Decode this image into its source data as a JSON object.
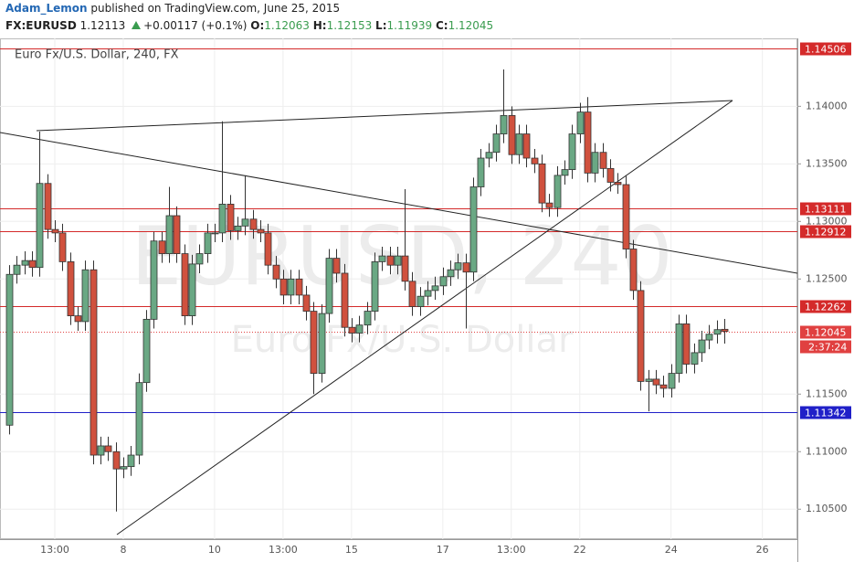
{
  "header": {
    "author": "Adam_Lemon",
    "byline": "published on TradingView.com, June 25, 2015",
    "symbol": "FX:EURUSD",
    "last": "1.12113",
    "change": "+0.00117 (+0.1%)",
    "ohlc": [
      {
        "label": "O:",
        "value": "1.12063"
      },
      {
        "label": "H:",
        "value": "1.12153"
      },
      {
        "label": "L:",
        "value": "1.11939"
      },
      {
        "label": "C:",
        "value": "1.12045"
      }
    ]
  },
  "chart_data": {
    "type": "candlestick",
    "title": "Euro Fx/U.S. Dollar, 240, FX",
    "watermark": "EURUSD, 240",
    "watermark_sub": "Euro Fx/U.S. Dollar",
    "categories": [
      null,
      null,
      null,
      null,
      null,
      null,
      "13:00",
      null,
      null,
      null,
      null,
      null,
      null,
      null,
      null,
      "8",
      null,
      null,
      null,
      null,
      null,
      null,
      null,
      null,
      null,
      null,
      null,
      "10",
      null,
      null,
      null,
      null,
      null,
      null,
      null,
      null,
      "13:00",
      null,
      null,
      null,
      null,
      null,
      null,
      null,
      null,
      "15",
      null,
      null,
      null,
      null,
      null,
      null,
      null,
      null,
      null,
      null,
      null,
      "17",
      null,
      null,
      null,
      null,
      null,
      null,
      null,
      null,
      "13:00",
      null,
      null,
      null,
      null,
      null,
      null,
      null,
      null,
      "22",
      null,
      null,
      null,
      null,
      null,
      null,
      null,
      null,
      null,
      null,
      null,
      "24",
      null,
      null,
      null,
      null,
      null,
      null,
      null,
      null,
      null,
      null,
      null,
      "26",
      null,
      null,
      null,
      null
    ],
    "open": [
      1.1123,
      1.1254,
      1.1262,
      1.1266,
      1.126,
      1.1333,
      1.1293,
      1.129,
      1.1265,
      1.1218,
      1.1213,
      1.1258,
      1.1097,
      1.1105,
      1.11,
      1.1085,
      1.1087,
      1.1097,
      1.116,
      1.1215,
      1.1283,
      1.1272,
      1.1305,
      1.1272,
      1.1218,
      1.1263,
      1.1272,
      1.129,
      1.129,
      1.1315,
      1.1292,
      1.1296,
      1.1302,
      1.1293,
      1.129,
      1.1262,
      1.125,
      1.1236,
      1.125,
      1.1236,
      1.1222,
      1.1168,
      1.122,
      1.1268,
      1.1255,
      1.1208,
      1.1203,
      1.121,
      1.1222,
      1.1265,
      1.127,
      1.1262,
      1.127,
      1.1248,
      1.1226,
      1.1235,
      1.124,
      1.1244,
      1.1252,
      1.1258,
      1.1264,
      1.1256,
      1.133,
      1.1355,
      1.136,
      1.1376,
      1.1392,
      1.1358,
      1.1376,
      1.1355,
      1.135,
      1.1316,
      1.1312,
      1.134,
      1.1345,
      1.1376,
      1.1395,
      1.1342,
      1.136,
      1.1346,
      1.1334,
      1.1332,
      1.1276,
      1.124,
      1.1161,
      1.1163,
      1.1158,
      1.1155,
      1.1168,
      1.1211,
      1.1176,
      1.1186,
      1.1197,
      1.1202,
      1.12063,
      null,
      null,
      null,
      null,
      null,
      null,
      null,
      null,
      null
    ],
    "high": [
      1.1262,
      1.127,
      1.1274,
      1.1274,
      1.1378,
      1.1341,
      1.1301,
      1.1298,
      1.1273,
      1.1226,
      1.1266,
      1.1266,
      1.1113,
      1.1113,
      1.1108,
      1.1095,
      1.1105,
      1.1168,
      1.1223,
      1.1291,
      1.1291,
      1.133,
      1.1313,
      1.128,
      1.1271,
      1.128,
      1.1298,
      1.1298,
      1.1387,
      1.1323,
      1.1304,
      1.134,
      1.131,
      1.1301,
      1.1298,
      1.127,
      1.1258,
      1.1258,
      1.1258,
      1.1244,
      1.123,
      1.1228,
      1.1276,
      1.1276,
      1.1263,
      1.1216,
      1.1218,
      1.123,
      1.1273,
      1.1278,
      1.1278,
      1.1278,
      1.1328,
      1.1256,
      1.1243,
      1.1248,
      1.1252,
      1.126,
      1.1266,
      1.1272,
      1.1272,
      1.1338,
      1.1363,
      1.1368,
      1.1384,
      1.1432,
      1.14,
      1.1384,
      1.1384,
      1.1363,
      1.1358,
      1.1324,
      1.1348,
      1.1353,
      1.1384,
      1.1403,
      1.1408,
      1.1368,
      1.1368,
      1.1354,
      1.1342,
      1.134,
      1.1284,
      1.1248,
      1.1171,
      1.1171,
      1.1166,
      1.1176,
      1.1219,
      1.1219,
      1.1194,
      1.1205,
      1.121,
      1.1214,
      1.12153,
      null,
      null,
      null,
      null,
      null,
      null,
      null,
      null,
      null
    ],
    "low": [
      1.1115,
      1.1246,
      1.1254,
      1.1252,
      1.1252,
      1.1285,
      1.1282,
      1.1257,
      1.121,
      1.1205,
      1.1205,
      1.1089,
      1.1089,
      1.1092,
      1.1048,
      1.1077,
      1.1079,
      1.1089,
      1.1152,
      1.1207,
      1.1264,
      1.1264,
      1.1264,
      1.121,
      1.121,
      1.1255,
      1.1264,
      1.1282,
      1.1282,
      1.1284,
      1.1284,
      1.1288,
      1.1285,
      1.1282,
      1.1254,
      1.1242,
      1.1228,
      1.1228,
      1.1228,
      1.1214,
      1.115,
      1.116,
      1.1212,
      1.1247,
      1.12,
      1.1195,
      1.1195,
      1.1202,
      1.1214,
      1.1257,
      1.1254,
      1.1254,
      1.124,
      1.1218,
      1.1218,
      1.1227,
      1.1232,
      1.1236,
      1.1244,
      1.125,
      1.1207,
      1.1248,
      1.1322,
      1.1347,
      1.1352,
      1.1368,
      1.135,
      1.135,
      1.1347,
      1.1342,
      1.1308,
      1.1304,
      1.1304,
      1.1332,
      1.1337,
      1.1368,
      1.1334,
      1.1334,
      1.1338,
      1.1326,
      1.1324,
      1.1268,
      1.1232,
      1.1153,
      1.1135,
      1.115,
      1.1147,
      1.1147,
      1.116,
      1.1168,
      1.1168,
      1.1178,
      1.1189,
      1.1194,
      1.11939,
      null,
      null,
      null,
      null,
      null,
      null,
      null,
      null,
      null
    ],
    "close": [
      1.1254,
      1.1262,
      1.1266,
      1.126,
      1.1333,
      1.1293,
      1.129,
      1.1265,
      1.1218,
      1.1213,
      1.1258,
      1.1097,
      1.1105,
      1.11,
      1.1085,
      1.1087,
      1.1097,
      1.116,
      1.1215,
      1.1283,
      1.1272,
      1.1305,
      1.1272,
      1.1218,
      1.1263,
      1.1272,
      1.129,
      1.129,
      1.1315,
      1.1292,
      1.1296,
      1.1302,
      1.1293,
      1.129,
      1.1262,
      1.125,
      1.1236,
      1.125,
      1.1236,
      1.1222,
      1.1168,
      1.122,
      1.1268,
      1.1255,
      1.1208,
      1.1203,
      1.121,
      1.1222,
      1.1265,
      1.127,
      1.1262,
      1.127,
      1.1248,
      1.1226,
      1.1235,
      1.124,
      1.1244,
      1.1252,
      1.1258,
      1.1264,
      1.1256,
      1.133,
      1.1355,
      1.136,
      1.1376,
      1.1392,
      1.1358,
      1.1376,
      1.1355,
      1.135,
      1.1316,
      1.1312,
      1.134,
      1.1345,
      1.1376,
      1.1395,
      1.1342,
      1.136,
      1.1346,
      1.1334,
      1.1332,
      1.1276,
      1.124,
      1.1161,
      1.1163,
      1.1158,
      1.1155,
      1.1168,
      1.1211,
      1.1176,
      1.1186,
      1.1197,
      1.1202,
      1.1206,
      1.12045,
      null,
      null,
      null,
      null,
      null,
      null,
      null,
      null,
      null
    ],
    "up_color": "#6aa884",
    "down_color": "#d0513e",
    "ylim": [
      1.1024,
      1.1459
    ],
    "yticks": [
      {
        "value": 1.105,
        "label": "1.10500"
      },
      {
        "value": 1.11,
        "label": "1.11000"
      },
      {
        "value": 1.115,
        "label": "1.11500"
      },
      {
        "value": 1.125,
        "label": "1.12500"
      },
      {
        "value": 1.13,
        "label": "1.13000"
      },
      {
        "value": 1.135,
        "label": "1.13500"
      },
      {
        "value": 1.14,
        "label": "1.14000"
      }
    ],
    "grid": true,
    "levels": [
      {
        "value": 1.14506,
        "color": "#d42a2a"
      },
      {
        "value": 1.13111,
        "color": "#d42a2a"
      },
      {
        "value": 1.12912,
        "color": "#d42a2a"
      },
      {
        "value": 1.12262,
        "color": "#d42a2a"
      },
      {
        "value": 1.11342,
        "color": "#2020c8"
      },
      {
        "value": 1.12045,
        "color": "#e04040",
        "dashed": true
      }
    ],
    "countdown": "2:37:24"
  }
}
